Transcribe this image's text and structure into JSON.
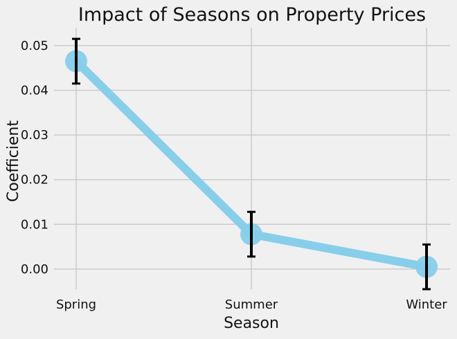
{
  "chart_data": {
    "type": "line",
    "title": "Impact of Seasons on Property Prices",
    "xlabel": "Season",
    "ylabel": "Coefficient",
    "categories": [
      "Spring",
      "Summer",
      "Winter"
    ],
    "series": [
      {
        "values": [
          0.0465,
          0.0078,
          0.0005
        ],
        "error": [
          0.005,
          0.005,
          0.005
        ]
      }
    ],
    "ylim": [
      -0.0045,
      0.054
    ],
    "yticks": [
      "0.00",
      "0.01",
      "0.02",
      "0.03",
      "0.04",
      "0.05"
    ],
    "ytick_values": [
      0.0,
      0.01,
      0.02,
      0.03,
      0.04,
      0.05
    ],
    "grid": true,
    "colors": {
      "line": "#87ceeb",
      "marker": "#87ceeb",
      "errorbar": "#000000",
      "background": "#f0f0f0",
      "grid": "#cbcbcb"
    }
  }
}
